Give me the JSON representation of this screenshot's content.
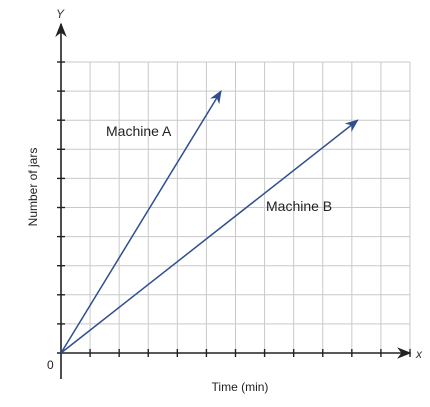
{
  "chart_data": {
    "type": "line",
    "title": "",
    "xlabel": "Time (min)",
    "ylabel": "Number of jars",
    "x_axis_symbol": "x",
    "y_axis_symbol": "Y",
    "origin_label": "0",
    "xlim": [
      0,
      12
    ],
    "ylim": [
      0,
      10
    ],
    "grid": true,
    "tick_labels_shown": false,
    "series": [
      {
        "name": "Machine A",
        "points": [
          [
            0,
            0
          ],
          [
            5.5,
            9
          ]
        ],
        "color": "#2e4e8e"
      },
      {
        "name": "Machine B",
        "points": [
          [
            0,
            0
          ],
          [
            10.2,
            8
          ]
        ],
        "color": "#2e4e8e"
      }
    ]
  }
}
